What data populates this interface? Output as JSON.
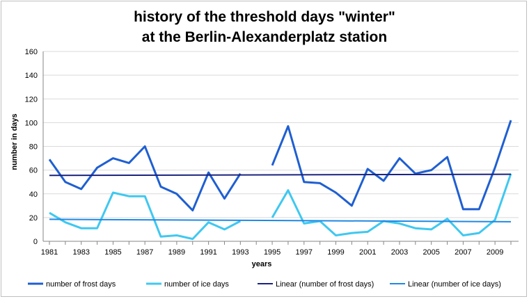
{
  "chart_data": {
    "type": "line",
    "title_line1": "history of the threshold days \"winter\"",
    "title_line2": "at the Berlin-Alexanderplatz station",
    "xlabel": "years",
    "ylabel": "number in days",
    "ylim": [
      0,
      160
    ],
    "yticks": [
      0,
      20,
      40,
      60,
      80,
      100,
      120,
      140,
      160
    ],
    "xlim": [
      1981,
      2010
    ],
    "xtick_labels": [
      "1981",
      "1983",
      "1985",
      "1987",
      "1989",
      "1991",
      "1993",
      "1995",
      "1997",
      "1999",
      "2001",
      "2003",
      "2005",
      "2007",
      "2009"
    ],
    "grid": "horizontal",
    "legend_position": "bottom",
    "x": [
      1981,
      1982,
      1983,
      1984,
      1985,
      1986,
      1987,
      1988,
      1989,
      1990,
      1991,
      1992,
      1993,
      1994,
      1995,
      1996,
      1997,
      1998,
      1999,
      2000,
      2001,
      2002,
      2003,
      2004,
      2005,
      2006,
      2007,
      2008,
      2009,
      2010
    ],
    "series": [
      {
        "name": "number of frost days",
        "color": "#1F5FD1",
        "values": [
          69,
          50,
          44,
          62,
          70,
          66,
          80,
          46,
          40,
          26,
          58,
          36,
          57,
          null,
          64,
          97,
          50,
          49,
          41,
          30,
          61,
          51,
          70,
          57,
          60,
          71,
          27,
          27,
          62,
          102
        ]
      },
      {
        "name": "number of ice days",
        "color": "#3FC8F0",
        "values": [
          24,
          16,
          11,
          11,
          41,
          38,
          38,
          4,
          5,
          2,
          16,
          10,
          17,
          null,
          20,
          43,
          15,
          17,
          5,
          7,
          8,
          17,
          15,
          11,
          10,
          19,
          5,
          7,
          18,
          57
        ]
      },
      {
        "name": "Linear (number of frost days)",
        "color": "#1A237E",
        "trend": [
          55.5,
          56.5
        ]
      },
      {
        "name": "Linear (number of ice days)",
        "color": "#1E88E5",
        "trend": [
          18.5,
          16.5
        ]
      }
    ]
  }
}
